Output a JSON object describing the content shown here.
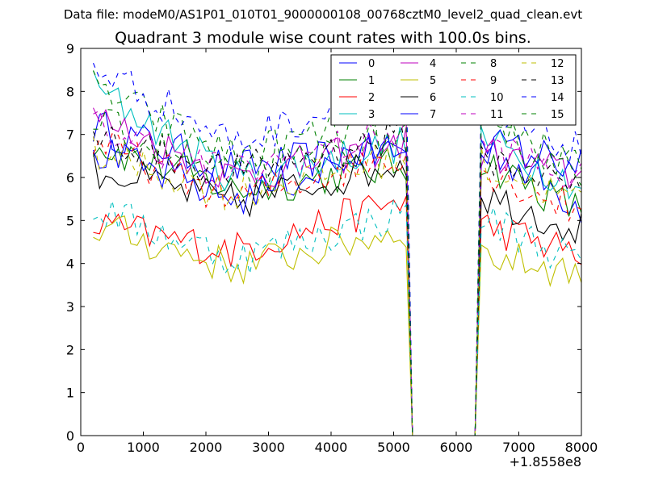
{
  "header": {
    "suptitle": "Data file: modeM0/AS1P01_010T01_9000000108_00768cztM0_level2_quad_clean.evt",
    "title": "Quadrant 3 module wise count rates with 100.0s bins."
  },
  "chart_data": {
    "type": "line",
    "title": "Quadrant 3 module wise count rates with 100.0s bins.",
    "xlabel": "",
    "ylabel": "",
    "x_offset_label": "+1.8558e8",
    "xlim": [
      0,
      8000
    ],
    "ylim": [
      0,
      9
    ],
    "xticks": [
      0,
      1000,
      2000,
      3000,
      4000,
      5000,
      6000,
      7000,
      8000
    ],
    "yticks": [
      0,
      1,
      2,
      3,
      4,
      5,
      6,
      7,
      8,
      9
    ],
    "grid": false,
    "legend_position": "top-right",
    "bin_width_s": 100,
    "x_start": 200,
    "x_end": 8000,
    "gap": {
      "drop_start": 5200,
      "zero_from": 5300,
      "zero_to": 6300,
      "recover_at": 6400
    },
    "series": [
      {
        "name": "0",
        "color": "#0000ff",
        "dash": false,
        "base_start": 7.2,
        "base_mid": 6.2,
        "base_end": 6.7,
        "after": 6.8,
        "final": 5.3
      },
      {
        "name": "1",
        "color": "#008000",
        "dash": false,
        "base_start": 6.8,
        "base_mid": 5.7,
        "base_end": 6.3,
        "after": 6.4,
        "final": 5.2
      },
      {
        "name": "2",
        "color": "#ff0000",
        "dash": false,
        "base_start": 4.9,
        "base_mid": 4.3,
        "base_end": 5.5,
        "after": 4.9,
        "final": 4.2
      },
      {
        "name": "3",
        "color": "#00bfbf",
        "dash": false,
        "base_start": 8.1,
        "base_mid": 6.0,
        "base_end": 6.8,
        "after": 6.9,
        "final": 5.8
      },
      {
        "name": "4",
        "color": "#bf00bf",
        "dash": false,
        "base_start": 7.4,
        "base_mid": 6.0,
        "base_end": 6.8,
        "after": 6.6,
        "final": 6.0
      },
      {
        "name": "5",
        "color": "#bfbf00",
        "dash": false,
        "base_start": 4.9,
        "base_mid": 3.9,
        "base_end": 4.8,
        "after": 4.2,
        "final": 3.8
      },
      {
        "name": "6",
        "color": "#000000",
        "dash": false,
        "base_start": 6.2,
        "base_mid": 5.4,
        "base_end": 6.4,
        "after": 5.6,
        "final": 4.8
      },
      {
        "name": "7",
        "color": "#0000ff",
        "dash": false,
        "base_start": 6.6,
        "base_mid": 5.5,
        "base_end": 6.8,
        "after": 6.8,
        "final": 6.3
      },
      {
        "name": "8",
        "color": "#008000",
        "dash": true,
        "base_start": 8.1,
        "base_mid": 6.5,
        "base_end": 7.5,
        "after": 7.4,
        "final": 6.4
      },
      {
        "name": "9",
        "color": "#ff0000",
        "dash": true,
        "base_start": 6.8,
        "base_mid": 5.5,
        "base_end": 6.6,
        "after": 6.2,
        "final": 5.2
      },
      {
        "name": "10",
        "color": "#00bfbf",
        "dash": true,
        "base_start": 5.3,
        "base_mid": 4.1,
        "base_end": 5.2,
        "after": 5.1,
        "final": 4.0
      },
      {
        "name": "11",
        "color": "#bf00bf",
        "dash": true,
        "base_start": 7.2,
        "base_mid": 6.1,
        "base_end": 7.1,
        "after": 6.8,
        "final": 5.9
      },
      {
        "name": "12",
        "color": "#bfbf00",
        "dash": true,
        "base_start": 6.6,
        "base_mid": 5.6,
        "base_end": 6.5,
        "after": 6.3,
        "final": 5.4
      },
      {
        "name": "13",
        "color": "#000000",
        "dash": true,
        "base_start": 7.0,
        "base_mid": 6.1,
        "base_end": 7.0,
        "after": 6.5,
        "final": 5.7
      },
      {
        "name": "14",
        "color": "#0000ff",
        "dash": true,
        "base_start": 8.6,
        "base_mid": 6.8,
        "base_end": 8.2,
        "after": 7.5,
        "final": 6.6
      },
      {
        "name": "15",
        "color": "#008000",
        "dash": true,
        "base_start": 7.3,
        "base_mid": 6.0,
        "base_end": 7.0,
        "after": 7.0,
        "final": 6.2
      }
    ]
  }
}
